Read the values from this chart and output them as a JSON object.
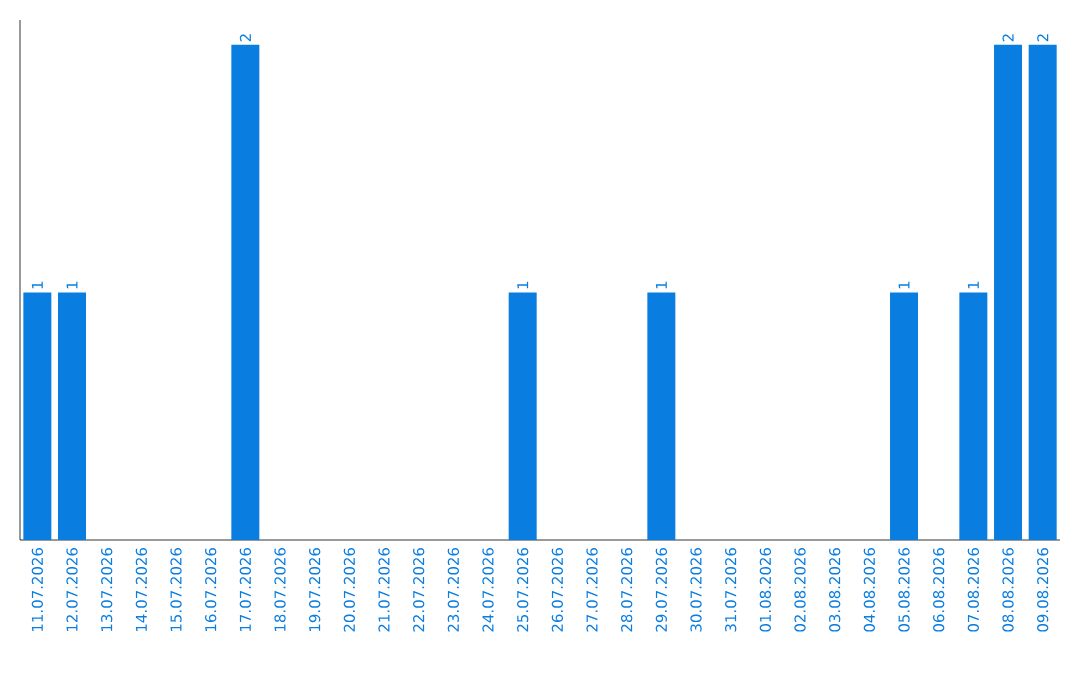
{
  "chart_data": {
    "type": "bar",
    "categories": [
      "11.07.2026",
      "12.07.2026",
      "13.07.2026",
      "14.07.2026",
      "15.07.2026",
      "16.07.2026",
      "17.07.2026",
      "18.07.2026",
      "19.07.2026",
      "20.07.2026",
      "21.07.2026",
      "22.07.2026",
      "23.07.2026",
      "24.07.2026",
      "25.07.2026",
      "26.07.2026",
      "27.07.2026",
      "28.07.2026",
      "29.07.2026",
      "30.07.2026",
      "31.07.2026",
      "01.08.2026",
      "02.08.2026",
      "03.08.2026",
      "04.08.2026",
      "05.08.2026",
      "06.08.2026",
      "07.08.2026",
      "08.08.2026",
      "09.08.2026"
    ],
    "values": [
      1,
      1,
      0,
      0,
      0,
      0,
      2,
      0,
      0,
      0,
      0,
      0,
      0,
      0,
      1,
      0,
      0,
      0,
      1,
      0,
      0,
      0,
      0,
      0,
      0,
      1,
      0,
      1,
      2,
      2
    ],
    "value_labels": [
      "1",
      "1",
      null,
      null,
      null,
      null,
      "2",
      null,
      null,
      null,
      null,
      null,
      null,
      null,
      "1",
      null,
      null,
      null,
      "1",
      null,
      null,
      null,
      null,
      null,
      null,
      "1",
      null,
      "1",
      "2",
      "2"
    ],
    "color": "#0a7ee0",
    "ylim": [
      0,
      2.1
    ],
    "tick_labels": "x"
  }
}
